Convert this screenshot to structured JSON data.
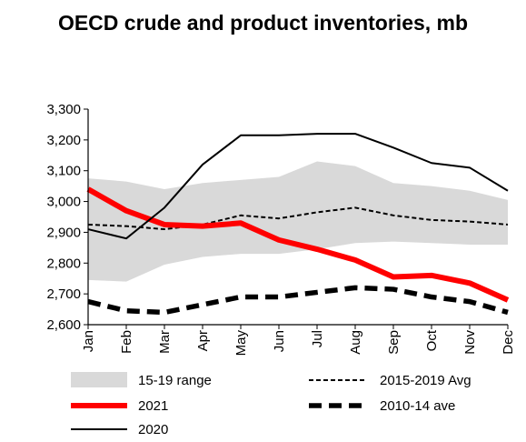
{
  "chart_data": {
    "type": "line",
    "title": "OECD crude and product inventories, mb",
    "xlabel": "",
    "ylabel": "",
    "categories": [
      "Jan",
      "Feb",
      "Mar",
      "Apr",
      "May",
      "Jun",
      "Jul",
      "Aug",
      "Sep",
      "Oct",
      "Nov",
      "Dec"
    ],
    "ylim": [
      2600,
      3300
    ],
    "yticks": [
      "2,600",
      "2,700",
      "2,800",
      "2,900",
      "3,000",
      "3,100",
      "3,200",
      "3,300"
    ],
    "grid": false,
    "legend_position": "bottom",
    "range": {
      "name": "15-19 range",
      "color": "#d9d9d9",
      "low": [
        2745,
        2740,
        2795,
        2820,
        2830,
        2830,
        2845,
        2865,
        2870,
        2865,
        2860,
        2860
      ],
      "high": [
        3075,
        3065,
        3040,
        3060,
        3070,
        3080,
        3130,
        3115,
        3060,
        3050,
        3035,
        3005
      ]
    },
    "series": [
      {
        "name": "2015-2019 Avg",
        "color": "#000000",
        "style": "dashed-thin",
        "values": [
          2925,
          2920,
          2910,
          2925,
          2955,
          2945,
          2965,
          2980,
          2955,
          2940,
          2935,
          2925
        ]
      },
      {
        "name": "2021",
        "color": "#ff0000",
        "style": "solid-thick",
        "values": [
          3040,
          2970,
          2925,
          2920,
          2930,
          2875,
          2845,
          2810,
          2755,
          2760,
          2735,
          2680
        ]
      },
      {
        "name": "2010-14 ave",
        "color": "#000000",
        "style": "dashed-thick",
        "values": [
          2675,
          2645,
          2640,
          2665,
          2690,
          2690,
          2705,
          2720,
          2715,
          2690,
          2675,
          2640
        ]
      },
      {
        "name": "2020",
        "color": "#000000",
        "style": "solid-thin",
        "values": [
          2910,
          2880,
          2980,
          3120,
          3215,
          3215,
          3220,
          3220,
          3175,
          3125,
          3110,
          3035
        ]
      }
    ]
  }
}
